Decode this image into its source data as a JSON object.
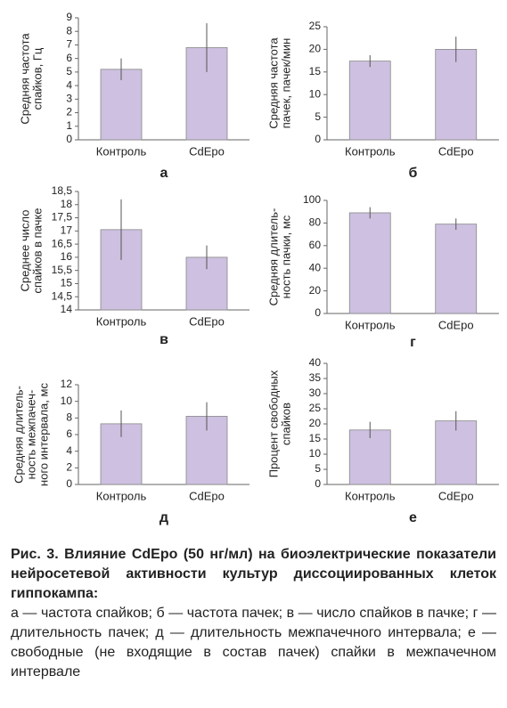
{
  "chart_data": [
    {
      "type": "bar",
      "label": "а",
      "ylabel": [
        "Средняя частота",
        "спайков, Гц"
      ],
      "categories": [
        "Контроль",
        "CdEpo"
      ],
      "values": [
        5.2,
        6.8
      ],
      "errors": [
        0.8,
        1.8
      ],
      "color": "#cdc0e0",
      "ylim": [
        0,
        9
      ],
      "yticks": [
        0,
        1,
        2,
        3,
        4,
        5,
        6,
        7,
        8,
        9
      ]
    },
    {
      "type": "bar",
      "label": "б",
      "ylabel": [
        "Средняя частота",
        "пачек, пачек/мин"
      ],
      "categories": [
        "Контроль",
        "CdEpo"
      ],
      "values": [
        17.4,
        20
      ],
      "errors": [
        1.3,
        2.8
      ],
      "color": "#cdc0e0",
      "ylim": [
        0,
        25
      ],
      "yticks": [
        0,
        5,
        10,
        15,
        20,
        25
      ]
    },
    {
      "type": "bar",
      "label": "в",
      "ylabel": [
        "Среднее число",
        "спайков в пачке"
      ],
      "categories": [
        "Контроль",
        "CdEpo"
      ],
      "values": [
        17.05,
        16.0
      ],
      "errors": [
        1.15,
        0.45
      ],
      "color": "#cdc0e0",
      "ylim": [
        14,
        18.5
      ],
      "yticks": [
        14,
        {
          "value": 14.5,
          "label": "14,5"
        },
        15,
        {
          "value": 15.5,
          "label": "15,5"
        },
        16,
        {
          "value": 16.5,
          "label": "16,5"
        },
        17,
        {
          "value": 17.5,
          "label": "17,5"
        },
        18,
        {
          "value": 18.5,
          "label": "18,5"
        }
      ]
    },
    {
      "type": "bar",
      "label": "г",
      "ylabel": [
        "Средняя длитель-",
        "ность пачки, мс"
      ],
      "categories": [
        "Контроль",
        "CdEpo"
      ],
      "values": [
        89,
        79
      ],
      "errors": [
        5,
        5
      ],
      "color": "#cdc0e0",
      "ylim": [
        0,
        100
      ],
      "yticks": [
        0,
        20,
        40,
        60,
        80,
        100
      ]
    },
    {
      "type": "bar",
      "label": "д",
      "ylabel": [
        "Средняя длитель-",
        "ность межпачеч-",
        "ного интервала, мс"
      ],
      "categories": [
        "Контроль",
        "CdEpo"
      ],
      "values": [
        7.3,
        8.2
      ],
      "errors": [
        1.6,
        1.7
      ],
      "color": "#cdc0e0",
      "ylim": [
        0,
        12
      ],
      "yticks": [
        0,
        2,
        4,
        6,
        8,
        10,
        12
      ]
    },
    {
      "type": "bar",
      "label": "е",
      "ylabel": [
        "Процент свободных",
        "спайков"
      ],
      "categories": [
        "Контроль",
        "CdEpo"
      ],
      "values": [
        18,
        21
      ],
      "errors": [
        2.7,
        3.2
      ],
      "color": "#cdc0e0",
      "ylim": [
        0,
        40
      ],
      "yticks": [
        0,
        5,
        10,
        15,
        20,
        25,
        30,
        35,
        40
      ]
    }
  ],
  "caption": {
    "title": "Рис. 3. Влияние CdEpo (50 нг/мл) на биоэлектрические показатели нейросетевой активности культур диссоциированных клеток гиппокампа:",
    "text": "а — частота спайков; б — частота пачек; в — число спайков в пачке; г — длительность пачек; д — длительность межпачечного интервала; е — свободные (не входящие в состав пачек) спайки в межпачечном интервале"
  }
}
